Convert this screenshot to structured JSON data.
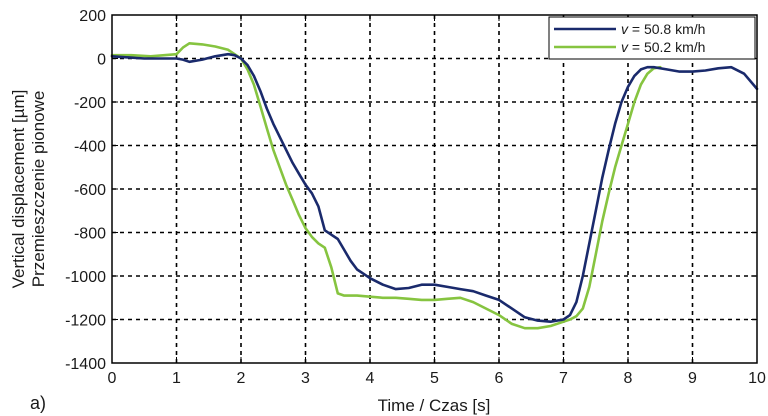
{
  "chart_data": {
    "type": "line",
    "panel_label": "a)",
    "xlabel": "Time / Czas [s]",
    "ylabel_line1": "Vertical displacement [µm]",
    "ylabel_line2": "Przemieszczenie pionowe",
    "xlim": [
      0,
      10
    ],
    "ylim": [
      -1400,
      200
    ],
    "xticks": [
      0,
      1,
      2,
      3,
      4,
      5,
      6,
      7,
      8,
      9,
      10
    ],
    "yticks": [
      200,
      0,
      -200,
      -400,
      -600,
      -800,
      -1000,
      -1200,
      -1400
    ],
    "grid": true,
    "grid_style": "dashed",
    "legend_position": "top-right",
    "series": [
      {
        "name_var": "v",
        "name_rest": " = 50.8 km/h",
        "color": "#1a2a6c",
        "x": [
          0,
          0.5,
          1.0,
          1.1,
          1.2,
          1.4,
          1.6,
          1.8,
          1.9,
          2.0,
          2.1,
          2.2,
          2.3,
          2.4,
          2.5,
          2.6,
          2.7,
          2.8,
          2.9,
          3.0,
          3.1,
          3.2,
          3.3,
          3.4,
          3.5,
          3.6,
          3.7,
          3.8,
          3.9,
          4.0,
          4.2,
          4.4,
          4.6,
          4.8,
          5.0,
          5.2,
          5.4,
          5.6,
          5.8,
          6.0,
          6.2,
          6.4,
          6.6,
          6.8,
          7.0,
          7.1,
          7.2,
          7.3,
          7.4,
          7.5,
          7.6,
          7.7,
          7.8,
          7.9,
          8.0,
          8.1,
          8.2,
          8.3,
          8.4,
          8.6,
          8.8,
          9.0,
          9.2,
          9.4,
          9.6,
          9.8,
          10.0
        ],
        "y": [
          10,
          0,
          0,
          -5,
          -15,
          -5,
          10,
          20,
          15,
          0,
          -30,
          -80,
          -150,
          -230,
          -300,
          -360,
          -420,
          -480,
          -530,
          -580,
          -620,
          -680,
          -790,
          -810,
          -830,
          -880,
          -930,
          -970,
          -990,
          -1010,
          -1040,
          -1060,
          -1055,
          -1040,
          -1040,
          -1050,
          -1060,
          -1070,
          -1090,
          -1110,
          -1150,
          -1190,
          -1205,
          -1210,
          -1200,
          -1180,
          -1120,
          -1000,
          -850,
          -700,
          -550,
          -420,
          -300,
          -200,
          -130,
          -80,
          -50,
          -40,
          -40,
          -50,
          -60,
          -60,
          -55,
          -45,
          -40,
          -70,
          -140
        ]
      },
      {
        "name_var": "v",
        "name_rest": " = 50.2 km/h",
        "color": "#86c440",
        "x": [
          0,
          0.3,
          0.6,
          1.0,
          1.1,
          1.2,
          1.4,
          1.6,
          1.8,
          2.0,
          2.1,
          2.2,
          2.3,
          2.4,
          2.5,
          2.6,
          2.7,
          2.8,
          2.9,
          3.0,
          3.1,
          3.2,
          3.3,
          3.4,
          3.5,
          3.6,
          3.8,
          4.0,
          4.2,
          4.4,
          4.6,
          4.8,
          5.0,
          5.2,
          5.4,
          5.6,
          5.8,
          6.0,
          6.2,
          6.4,
          6.6,
          6.8,
          7.0,
          7.1,
          7.2,
          7.3,
          7.4,
          7.5,
          7.6,
          7.7,
          7.8,
          7.9,
          8.0,
          8.1,
          8.2,
          8.3,
          8.4,
          8.5
        ],
        "y": [
          15,
          15,
          10,
          20,
          50,
          70,
          65,
          55,
          40,
          0,
          -50,
          -120,
          -220,
          -320,
          -420,
          -500,
          -580,
          -650,
          -720,
          -780,
          -820,
          -850,
          -870,
          -960,
          -1080,
          -1090,
          -1090,
          -1095,
          -1100,
          -1100,
          -1105,
          -1110,
          -1110,
          -1105,
          -1100,
          -1120,
          -1150,
          -1180,
          -1220,
          -1240,
          -1240,
          -1230,
          -1210,
          -1200,
          -1185,
          -1150,
          -1050,
          -900,
          -750,
          -620,
          -500,
          -400,
          -300,
          -200,
          -120,
          -70,
          -45,
          -40
        ]
      }
    ]
  }
}
